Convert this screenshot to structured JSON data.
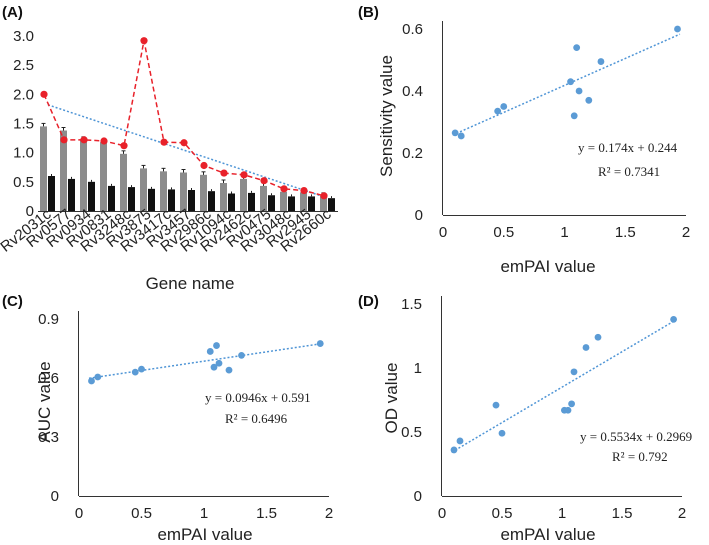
{
  "panels": {
    "A": {
      "label": "(A)"
    },
    "B": {
      "label": "(B)"
    },
    "C": {
      "label": "(C)"
    },
    "D": {
      "label": "(D)"
    }
  },
  "colors": {
    "grey_bar": "#8c8c8c",
    "black_bar": "#111111",
    "red_line": "#e8212a",
    "trend_blue": "#4f95d6",
    "point_blue": "#5b9bd5",
    "axis": "#333333"
  },
  "chart_data": [
    {
      "id": "A",
      "type": "bar",
      "title": "",
      "xlabel": "Gene name",
      "ylabel": "",
      "ylim": [
        0,
        3.0
      ],
      "yticks": [
        "0",
        "0.5",
        "1.0",
        "1.5",
        "2.0",
        "2.5",
        "3.0"
      ],
      "categories": [
        "Rv2031c",
        "Rv0577",
        "Rv0934",
        "Rv0831",
        "Rv3248c",
        "Rv3875",
        "Rv3417c",
        "Rv3457",
        "Rv2986c",
        "Rv1094c",
        "Rv2462c",
        "Rv0475",
        "Rv3048c",
        "Rv2945",
        "Rv2660c"
      ],
      "series": [
        {
          "name": "grey bars",
          "kind": "bar",
          "values": [
            1.45,
            1.38,
            1.22,
            1.18,
            0.98,
            0.73,
            0.68,
            0.66,
            0.62,
            0.48,
            0.55,
            0.43,
            0.33,
            0.32,
            0.26
          ]
        },
        {
          "name": "black bars",
          "kind": "bar",
          "values": [
            0.6,
            0.55,
            0.5,
            0.43,
            0.41,
            0.38,
            0.37,
            0.36,
            0.34,
            0.3,
            0.31,
            0.27,
            0.25,
            0.25,
            0.22
          ]
        },
        {
          "name": "red dashed",
          "kind": "line",
          "values": [
            2.0,
            1.22,
            1.22,
            1.2,
            1.12,
            2.92,
            1.18,
            1.17,
            0.78,
            0.65,
            0.62,
            0.52,
            0.38,
            0.35,
            0.26
          ]
        }
      ],
      "trendline": {
        "from": 1.82,
        "to": 0.22
      }
    },
    {
      "id": "B",
      "type": "scatter",
      "xlabel": "emPAI value",
      "ylabel": "Sensitivity value",
      "xlim": [
        0,
        2
      ],
      "ylim": [
        0,
        0.6
      ],
      "xticks": [
        "0",
        "0.5",
        "1",
        "1.5",
        "2"
      ],
      "yticks": [
        "0",
        "0.2",
        "0.4",
        "0.6"
      ],
      "x": [
        0.1,
        0.15,
        0.45,
        0.5,
        1.05,
        1.08,
        1.1,
        1.12,
        1.2,
        1.3,
        1.93
      ],
      "y": [
        0.265,
        0.255,
        0.335,
        0.35,
        0.43,
        0.32,
        0.54,
        0.4,
        0.37,
        0.495,
        0.6
      ],
      "trendline": {
        "slope": 0.174,
        "intercept": 0.244,
        "x0": 0.08,
        "x1": 1.95
      },
      "equation": "y = 0.174x + 0.244",
      "r2": "R² = 0.7341"
    },
    {
      "id": "C",
      "type": "scatter",
      "xlabel": "emPAI value",
      "ylabel": "AUC value",
      "xlim": [
        0,
        2
      ],
      "ylim": [
        0,
        0.9
      ],
      "xticks": [
        "0",
        "0.5",
        "1",
        "1.5",
        "2"
      ],
      "yticks": [
        "0",
        "0.3",
        "0.6",
        "0.9"
      ],
      "x": [
        0.1,
        0.15,
        0.45,
        0.5,
        1.05,
        1.08,
        1.1,
        1.12,
        1.2,
        1.3,
        1.93
      ],
      "y": [
        0.585,
        0.605,
        0.63,
        0.645,
        0.735,
        0.655,
        0.765,
        0.675,
        0.64,
        0.715,
        0.775
      ],
      "trendline": {
        "slope": 0.0946,
        "intercept": 0.591,
        "x0": 0.08,
        "x1": 1.95
      },
      "equation": "y = 0.0946x + 0.591",
      "r2": "R² = 0.6496"
    },
    {
      "id": "D",
      "type": "scatter",
      "xlabel": "emPAI value",
      "ylabel": "OD value",
      "xlim": [
        0,
        2
      ],
      "ylim": [
        0,
        1.5
      ],
      "xticks": [
        "0",
        "0.5",
        "1",
        "1.5",
        "2"
      ],
      "yticks": [
        "0",
        "0.5",
        "1",
        "1.5"
      ],
      "x": [
        0.1,
        0.15,
        0.45,
        0.5,
        1.02,
        1.05,
        1.08,
        1.1,
        1.2,
        1.3,
        1.93
      ],
      "y": [
        0.36,
        0.43,
        0.71,
        0.49,
        0.67,
        0.67,
        0.72,
        0.97,
        1.16,
        1.24,
        1.38
      ],
      "trendline": {
        "slope": 0.5534,
        "intercept": 0.2969,
        "x0": 0.08,
        "x1": 1.95
      },
      "equation": "y = 0.5534x + 0.2969",
      "r2": "R² = 0.792"
    }
  ]
}
